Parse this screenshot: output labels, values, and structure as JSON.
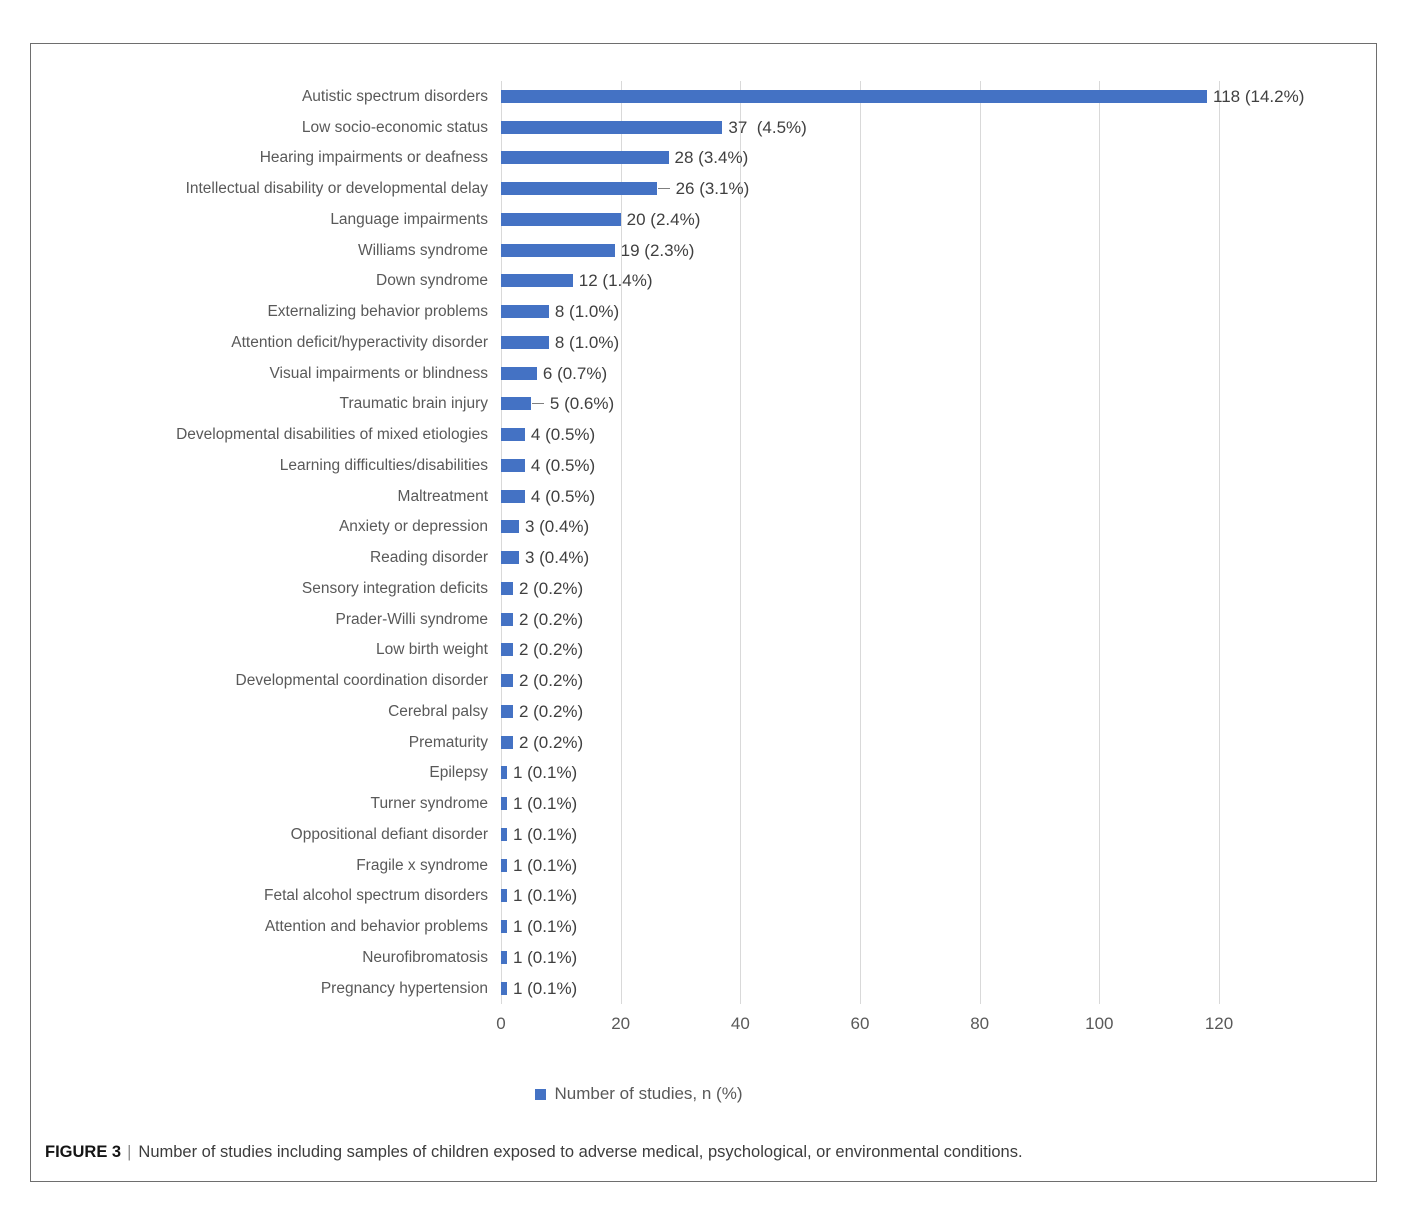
{
  "figure": {
    "caption": {
      "label": "FIGURE 3",
      "separator": "|",
      "text": "Number of studies including samples of children exposed to adverse medical, psychological, or environmental conditions."
    }
  },
  "chart_data": {
    "type": "bar",
    "orientation": "horizontal",
    "title": "",
    "xlabel": "",
    "ylabel": "",
    "xlim": [
      0,
      120
    ],
    "x_ticks": [
      0,
      20,
      40,
      60,
      80,
      100,
      120
    ],
    "grid": "vertical-major",
    "legend_position": "bottom-center",
    "legend": "Number of studies, n (%)",
    "bar_color": "#4472C4",
    "gridline_color": "#D9D9D9",
    "category_label_color": "#595959",
    "value_label_color": "#404040",
    "categories": [
      "Autistic spectrum disorders",
      "Low socio-economic status",
      "Hearing impairments or deafness",
      "Intellectual disability or developmental delay",
      "Language impairments",
      "Williams syndrome",
      "Down syndrome",
      "Externalizing behavior problems",
      "Attention deficit/hyperactivity disorder",
      "Visual impairments or blindness",
      "Traumatic brain injury",
      "Developmental disabilities of mixed etiologies",
      "Learning difficulties/disabilities",
      "Maltreatment",
      "Anxiety or depression",
      "Reading disorder",
      "Sensory integration deficits",
      "Prader-Willi syndrome",
      "Low birth weight",
      "Developmental coordination disorder",
      "Cerebral palsy",
      "Prematurity",
      "Epilepsy",
      "Turner syndrome",
      "Oppositional defiant disorder",
      "Fragile x syndrome",
      "Fetal alcohol spectrum disorders",
      "Attention and behavior problems",
      "Neurofibromatosis",
      "Pregnancy hypertension"
    ],
    "values": [
      118,
      37,
      28,
      26,
      20,
      19,
      12,
      8,
      8,
      6,
      5,
      4,
      4,
      4,
      3,
      3,
      2,
      2,
      2,
      2,
      2,
      2,
      1,
      1,
      1,
      1,
      1,
      1,
      1,
      1
    ],
    "value_labels": [
      "118 (14.2%)",
      "37  (4.5%)",
      "28 (3.4%)",
      "26 (3.1%)",
      "20 (2.4%)",
      "19 (2.3%)",
      "12 (1.4%)",
      "8 (1.0%)",
      "8 (1.0%)",
      "6 (0.7%)",
      "5 (0.6%)",
      "4 (0.5%)",
      "4 (0.5%)",
      "4 (0.5%)",
      "3 (0.4%)",
      "3 (0.4%)",
      "2 (0.2%)",
      "2 (0.2%)",
      "2 (0.2%)",
      "2 (0.2%)",
      "2 (0.2%)",
      "2 (0.2%)",
      "1 (0.1%)",
      "1 (0.1%)",
      "1 (0.1%)",
      "1 (0.1%)",
      "1 (0.1%)",
      "1 (0.1%)",
      "1 (0.1%)",
      "1 (0.1%)"
    ],
    "leader_rows": [
      3,
      10
    ]
  }
}
